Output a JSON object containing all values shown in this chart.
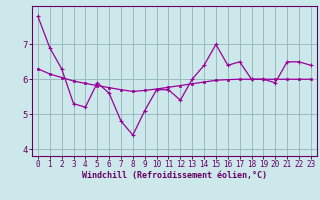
{
  "xlabel": "Windchill (Refroidissement éolien,°C)",
  "x_values": [
    0,
    1,
    2,
    3,
    4,
    5,
    6,
    7,
    8,
    9,
    10,
    11,
    12,
    13,
    14,
    15,
    16,
    17,
    18,
    19,
    20,
    21,
    22,
    23
  ],
  "line1_y": [
    7.8,
    6.9,
    6.3,
    5.3,
    5.2,
    5.9,
    5.6,
    4.8,
    4.4,
    5.1,
    5.7,
    5.7,
    5.4,
    6.0,
    6.4,
    7.0,
    6.4,
    6.5,
    6.0,
    6.0,
    5.9,
    6.5,
    6.5,
    6.4
  ],
  "line2_y": [
    6.3,
    6.15,
    6.05,
    5.95,
    5.88,
    5.82,
    5.76,
    5.7,
    5.65,
    5.68,
    5.72,
    5.77,
    5.82,
    5.87,
    5.92,
    5.97,
    5.99,
    6.0,
    6.0,
    6.0,
    6.0,
    6.0,
    6.0,
    6.0
  ],
  "line_color": "#990099",
  "bg_color": "#cce8ea",
  "grid_color": "#99bbbd",
  "axis_color": "#660066",
  "spine_color": "#660066",
  "ylim": [
    3.8,
    8.1
  ],
  "yticks": [
    4,
    5,
    6,
    7
  ],
  "xlim": [
    -0.5,
    23.5
  ],
  "tick_fontsize": 5.5,
  "xlabel_fontsize": 6.0
}
